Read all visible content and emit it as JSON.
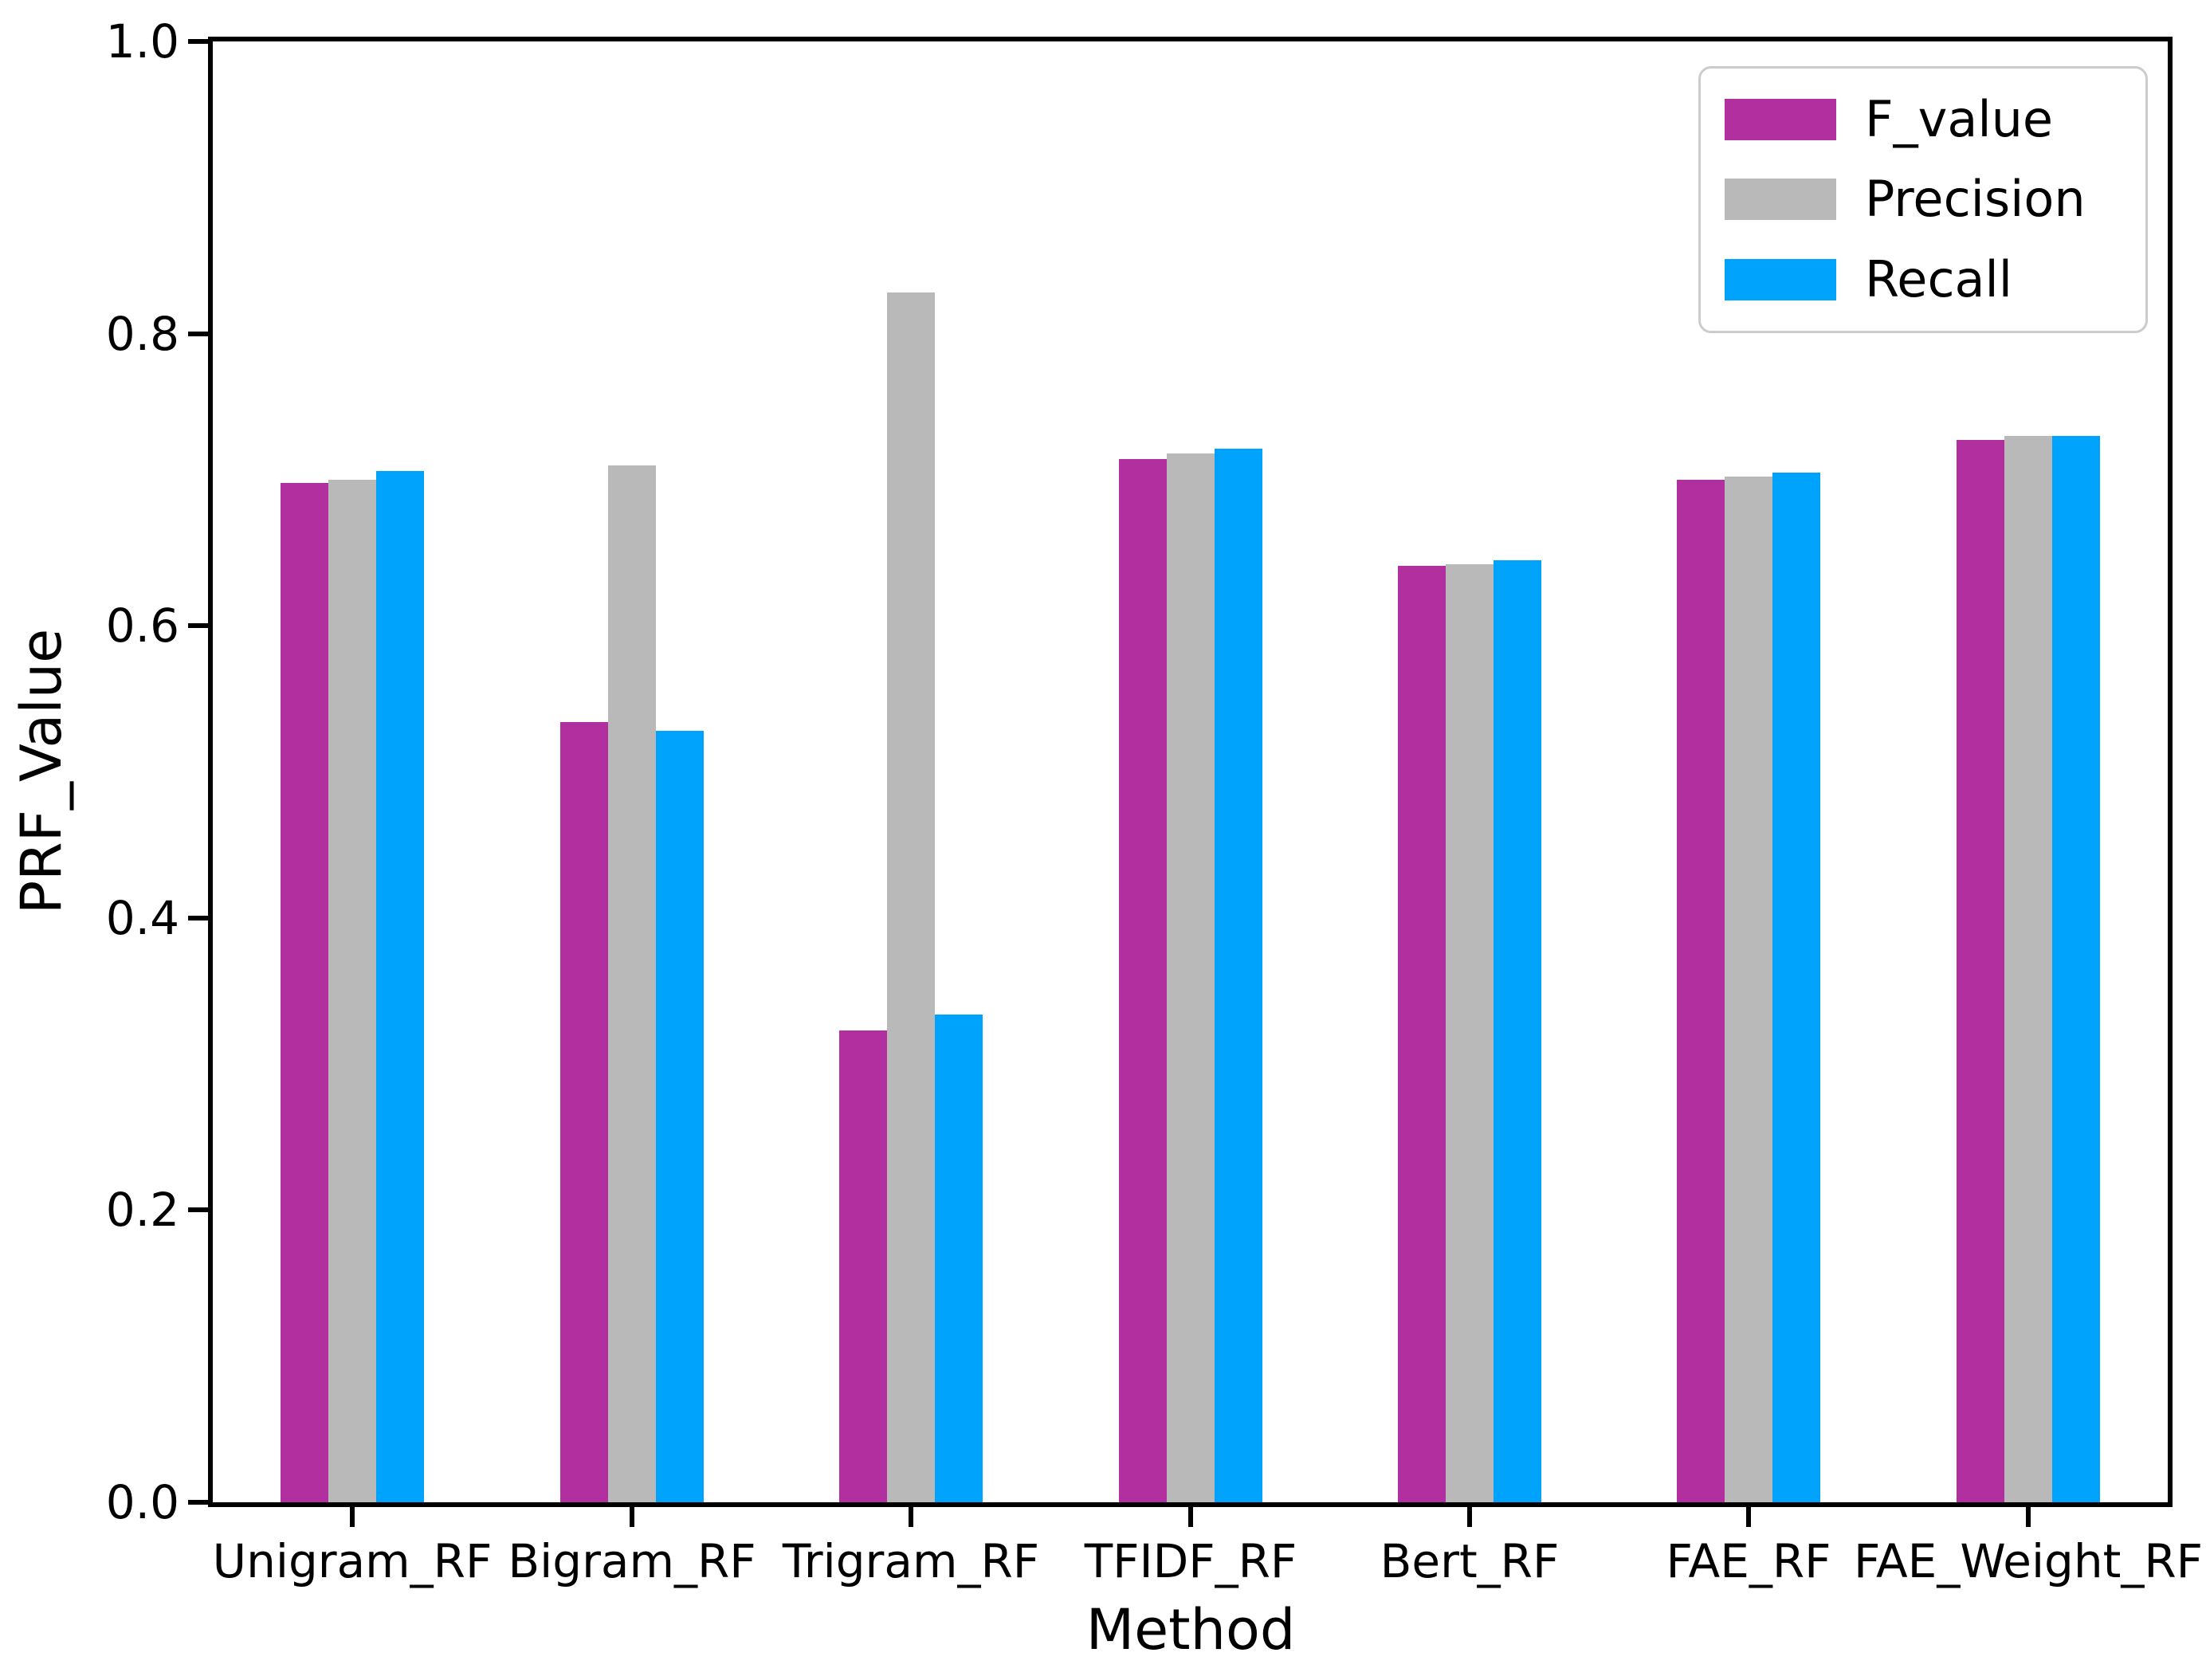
{
  "figure": {
    "background": "#ffffff",
    "spine_color": "#000000"
  },
  "chart_data": {
    "type": "bar",
    "title": "",
    "xlabel": "Method",
    "ylabel": "PRF_Value",
    "ylim": [
      0.0,
      1.0
    ],
    "yticks": [
      0.0,
      0.2,
      0.4,
      0.6,
      0.8,
      1.0
    ],
    "ytick_labels": [
      "0.0",
      "0.2",
      "0.4",
      "0.6",
      "0.8",
      "1.0"
    ],
    "grid": false,
    "legend_position": "upper right",
    "categories": [
      "Unigram_RF",
      "Bigram_RF",
      "Trigram_RF",
      "TFIDF_RF",
      "Bert_RF",
      "FAE_RF",
      "FAE_Weight_RF"
    ],
    "series": [
      {
        "name": "F_value",
        "color": "#b22fa0",
        "values": [
          0.698,
          0.534,
          0.323,
          0.714,
          0.641,
          0.7,
          0.727
        ]
      },
      {
        "name": "Precision",
        "color": "#b9b9b9",
        "values": [
          0.7,
          0.71,
          0.828,
          0.718,
          0.642,
          0.702,
          0.73
        ]
      },
      {
        "name": "Recall",
        "color": "#00a3fb",
        "values": [
          0.706,
          0.528,
          0.334,
          0.721,
          0.645,
          0.705,
          0.73
        ]
      }
    ]
  }
}
